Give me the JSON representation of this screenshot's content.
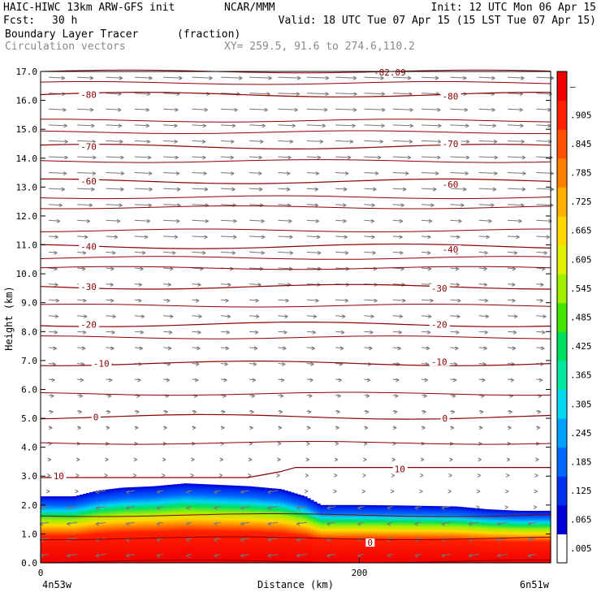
{
  "header": {
    "model": "HAIC-HIWC 13km ARW-GFS init",
    "org": "NCAR/MMM",
    "init": "Init: 12 UTC Mon 06 Apr 15",
    "fcst_label": "Fcst:",
    "fcst_value": "30 h",
    "valid": "Valid: 18 UTC Tue 07 Apr 15 (15 LST Tue 07 Apr 15)",
    "field": "Boundary Layer Tracer",
    "field_units": "(fraction)",
    "overlay": "Circulation vectors",
    "xy": "XY= 259.5, 91.6 to 274.6,110.2"
  },
  "colors": {
    "isotherm": "#8b0000",
    "vector": "#777777",
    "scale": [
      "#ffffff",
      "#0000d8",
      "#0030f0",
      "#0068ff",
      "#00a0ff",
      "#00d8f0",
      "#00e8a0",
      "#00e060",
      "#40e800",
      "#a0f000",
      "#e0f000",
      "#ffd800",
      "#ffb000",
      "#ff8000",
      "#ff5000",
      "#ff2000",
      "#f00000"
    ]
  },
  "chart_data": {
    "type": "cross-section",
    "title": "Boundary Layer Tracer",
    "units": "(fraction)",
    "xlabel": "Distance (km)",
    "ylabel": "Height (km)",
    "xlim": [
      0,
      320
    ],
    "ylim": [
      0,
      17
    ],
    "x_ticks": [
      {
        "value": 0,
        "label": "0"
      },
      {
        "value": 200,
        "label": "200"
      }
    ],
    "x_end_labels": {
      "left": "4n53w",
      "right": "6n51w"
    },
    "y_ticks": [
      "0.0",
      "1.0",
      "2.0",
      "3.0",
      "4.0",
      "5.0",
      "6.0",
      "7.0",
      "8.0",
      "9.0",
      "10.0",
      "11.0",
      "12.0",
      "13.0",
      "14.0",
      "15.0",
      "16.0",
      "17.0"
    ],
    "colorbar_labels": [
      ".005",
      ".065",
      ".125",
      ".185",
      ".245",
      ".305",
      ".365",
      ".425",
      ".485",
      ".545",
      ".605",
      ".665",
      ".725",
      ".785",
      ".845",
      ".905",
      "—"
    ],
    "top_label": "-82.09",
    "boundary_layer_top_km": [
      [
        0,
        2.3
      ],
      [
        20,
        2.3
      ],
      [
        35,
        2.5
      ],
      [
        50,
        2.6
      ],
      [
        70,
        2.65
      ],
      [
        90,
        2.75
      ],
      [
        110,
        2.7
      ],
      [
        130,
        2.65
      ],
      [
        150,
        2.55
      ],
      [
        165,
        2.3
      ],
      [
        175,
        2.0
      ],
      [
        200,
        2.0
      ],
      [
        230,
        1.98
      ],
      [
        260,
        1.95
      ],
      [
        280,
        1.85
      ],
      [
        300,
        1.8
      ],
      [
        320,
        1.8
      ]
    ],
    "isotherms": [
      {
        "label": "-80",
        "y": 16.2
      },
      {
        "label": "-70",
        "y": 14.4
      },
      {
        "label": "-60",
        "y": 13.2
      },
      {
        "label": "-40",
        "y": 10.95
      },
      {
        "label": "-30",
        "y": 9.55
      },
      {
        "label": "-20",
        "y": 8.25
      },
      {
        "label": "-10",
        "y": 6.9
      },
      {
        "label": "0",
        "y": 5.05
      },
      {
        "label": "10",
        "y": 3.0
      }
    ],
    "isotherm_labels": [
      {
        "text": "-80",
        "x": 25,
        "y": 16.2
      },
      {
        "text": "-80",
        "x": 252,
        "y": 16.15
      },
      {
        "text": "-70",
        "x": 25,
        "y": 14.4
      },
      {
        "text": "-70",
        "x": 252,
        "y": 14.5
      },
      {
        "text": "-60",
        "x": 25,
        "y": 13.2
      },
      {
        "text": "-60",
        "x": 252,
        "y": 13.1
      },
      {
        "text": "-40",
        "x": 25,
        "y": 10.95
      },
      {
        "text": "-40",
        "x": 252,
        "y": 10.85
      },
      {
        "text": "-30",
        "x": 25,
        "y": 9.55
      },
      {
        "text": "-30",
        "x": 245,
        "y": 9.5
      },
      {
        "text": "-20",
        "x": 25,
        "y": 8.25
      },
      {
        "text": "-20",
        "x": 245,
        "y": 8.25
      },
      {
        "text": "-10",
        "x": 33,
        "y": 6.9
      },
      {
        "text": "-10",
        "x": 245,
        "y": 6.95
      },
      {
        "text": "0",
        "x": 33,
        "y": 5.05
      },
      {
        "text": "0",
        "x": 252,
        "y": 5.0
      },
      {
        "text": "10",
        "x": 8,
        "y": 3.0
      },
      {
        "text": "10",
        "x": 222,
        "y": 3.25
      },
      {
        "text": "0",
        "x": 205,
        "y": 0.7
      }
    ]
  }
}
